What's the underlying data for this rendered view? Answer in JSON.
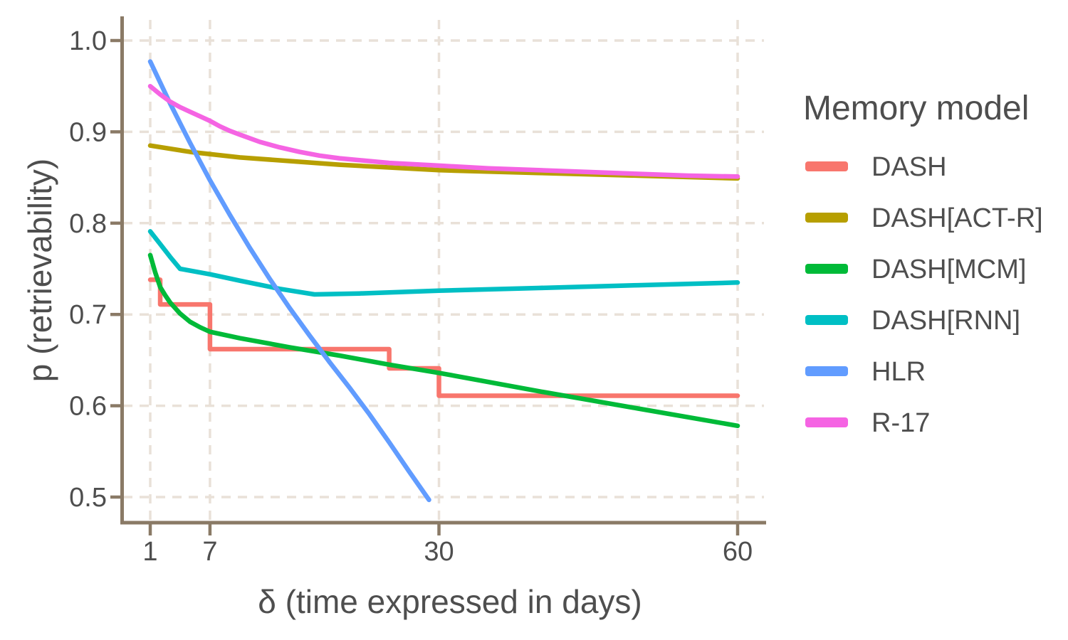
{
  "chart_data": {
    "type": "line",
    "title": "",
    "xlabel": "δ (time expressed in days)",
    "ylabel": "p (retrievability)",
    "x_scale": "linear",
    "xlim": [
      1,
      60
    ],
    "ylim": [
      0.5,
      1.0
    ],
    "grid": "dashed",
    "x_ticks": [
      {
        "value": 1,
        "label": "1"
      },
      {
        "value": 7,
        "label": "7"
      },
      {
        "value": 30,
        "label": "30"
      },
      {
        "value": 60,
        "label": "60"
      }
    ],
    "y_ticks": [
      {
        "value": 1.0,
        "label": "1.0"
      },
      {
        "value": 0.9,
        "label": "0.9"
      },
      {
        "value": 0.8,
        "label": "0.8"
      },
      {
        "value": 0.7,
        "label": "0.7"
      },
      {
        "value": 0.6,
        "label": "0.6"
      },
      {
        "value": 0.5,
        "label": "0.5"
      }
    ],
    "series": [
      {
        "name": "DASH",
        "color": "#F8766D",
        "style": "step",
        "points": [
          [
            1,
            0.738
          ],
          [
            2,
            0.738
          ],
          [
            2,
            0.711
          ],
          [
            7,
            0.711
          ],
          [
            7,
            0.662
          ],
          [
            25,
            0.662
          ],
          [
            25,
            0.641
          ],
          [
            30,
            0.641
          ],
          [
            30,
            0.611
          ],
          [
            60,
            0.611
          ]
        ]
      },
      {
        "name": "DASH[ACT-R]",
        "color": "#B79F00",
        "style": "line",
        "points": [
          [
            1,
            0.885
          ],
          [
            5,
            0.878
          ],
          [
            10,
            0.872
          ],
          [
            15,
            0.868
          ],
          [
            20,
            0.864
          ],
          [
            25,
            0.861
          ],
          [
            30,
            0.858
          ],
          [
            40,
            0.855
          ],
          [
            50,
            0.852
          ],
          [
            60,
            0.849
          ]
        ]
      },
      {
        "name": "DASH[MCM]",
        "color": "#00BA38",
        "style": "line",
        "points": [
          [
            1,
            0.765
          ],
          [
            1.5,
            0.746
          ],
          [
            2,
            0.73
          ],
          [
            2.5,
            0.721
          ],
          [
            3,
            0.713
          ],
          [
            4,
            0.701
          ],
          [
            5,
            0.692
          ],
          [
            6,
            0.686
          ],
          [
            7,
            0.681
          ],
          [
            10,
            0.674
          ],
          [
            15,
            0.664
          ],
          [
            20,
            0.655
          ],
          [
            25,
            0.645
          ],
          [
            30,
            0.636
          ],
          [
            40,
            0.616
          ],
          [
            50,
            0.597
          ],
          [
            60,
            0.578
          ]
        ]
      },
      {
        "name": "DASH[RNN]",
        "color": "#00BFC4",
        "style": "line",
        "points": [
          [
            1,
            0.791
          ],
          [
            2,
            0.777
          ],
          [
            3,
            0.763
          ],
          [
            4,
            0.75
          ],
          [
            7,
            0.744
          ],
          [
            10,
            0.737
          ],
          [
            14,
            0.728
          ],
          [
            17.5,
            0.722
          ],
          [
            22,
            0.723
          ],
          [
            30,
            0.726
          ],
          [
            40,
            0.729
          ],
          [
            50,
            0.732
          ],
          [
            60,
            0.735
          ]
        ]
      },
      {
        "name": "HLR",
        "color": "#619CFF",
        "style": "line",
        "points": [
          [
            1,
            0.977
          ],
          [
            3,
            0.931
          ],
          [
            5,
            0.888
          ],
          [
            7,
            0.847
          ],
          [
            9,
            0.809
          ],
          [
            11,
            0.773
          ],
          [
            13,
            0.739
          ],
          [
            15,
            0.707
          ],
          [
            17,
            0.677
          ],
          [
            19,
            0.648
          ],
          [
            21,
            0.62
          ],
          [
            23,
            0.591
          ],
          [
            25,
            0.56
          ],
          [
            27,
            0.528
          ],
          [
            29,
            0.497
          ]
        ]
      },
      {
        "name": "R-17",
        "color": "#F564E3",
        "style": "line",
        "points": [
          [
            1,
            0.95
          ],
          [
            2,
            0.941
          ],
          [
            3,
            0.933
          ],
          [
            4,
            0.927
          ],
          [
            5,
            0.922
          ],
          [
            6,
            0.917
          ],
          [
            7,
            0.912
          ],
          [
            8,
            0.906
          ],
          [
            9,
            0.901
          ],
          [
            10,
            0.897
          ],
          [
            12,
            0.889
          ],
          [
            14,
            0.883
          ],
          [
            16,
            0.878
          ],
          [
            18,
            0.874
          ],
          [
            20,
            0.871
          ],
          [
            25,
            0.866
          ],
          [
            30,
            0.863
          ],
          [
            35,
            0.86
          ],
          [
            40,
            0.858
          ],
          [
            45,
            0.856
          ],
          [
            50,
            0.854
          ],
          [
            55,
            0.852
          ],
          [
            60,
            0.851
          ]
        ]
      }
    ]
  },
  "legend": {
    "title": "Memory model",
    "position": "right",
    "items": [
      {
        "label": "DASH",
        "color": "#F8766D"
      },
      {
        "label": "DASH[ACT-R]",
        "color": "#B79F00"
      },
      {
        "label": "DASH[MCM]",
        "color": "#00BA38"
      },
      {
        "label": "DASH[RNN]",
        "color": "#00BFC4"
      },
      {
        "label": "HLR",
        "color": "#619CFF"
      },
      {
        "label": "R-17",
        "color": "#F564E3"
      }
    ]
  },
  "style": {
    "axis_color": "#8a7a66",
    "grid_color": "#e9e1d8",
    "text_color": "#4e4e4e",
    "background": "#ffffff"
  }
}
